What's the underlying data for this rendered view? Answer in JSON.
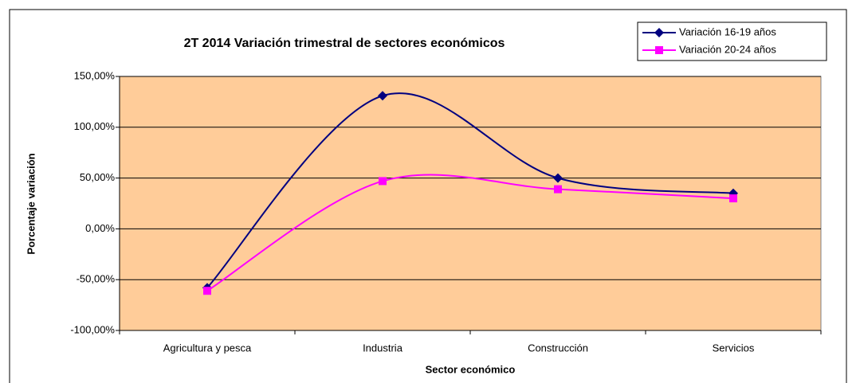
{
  "chart_data": {
    "type": "line",
    "smooth": true,
    "grid": true,
    "legend": "top-right",
    "title": "2T 2014 Variación trimestral de sectores económicos",
    "x_label": "Sector económico",
    "y_label": "Porcentaje variación",
    "categories": [
      "Agricultura y pesca",
      "Industria",
      "Construcción",
      "Servicios"
    ],
    "series": [
      {
        "name": "Variación 16-19 años",
        "color": "#000080",
        "marker": "diamond",
        "values": [
          -58,
          131,
          50,
          35
        ]
      },
      {
        "name": "Variación 20-24 años",
        "color": "#ff00ff",
        "marker": "square",
        "values": [
          -61,
          47,
          39,
          30
        ]
      }
    ],
    "ylim": [
      -100,
      150
    ],
    "yticks": [
      {
        "value": -100,
        "label": "-100,00%"
      },
      {
        "value": -50,
        "label": "-50,00%"
      },
      {
        "value": 0,
        "label": "0,00%"
      },
      {
        "value": 50,
        "label": "50,00%"
      },
      {
        "value": 100,
        "label": "100,00%"
      },
      {
        "value": 150,
        "label": "150,00%"
      }
    ],
    "background": "#ffcc99"
  }
}
